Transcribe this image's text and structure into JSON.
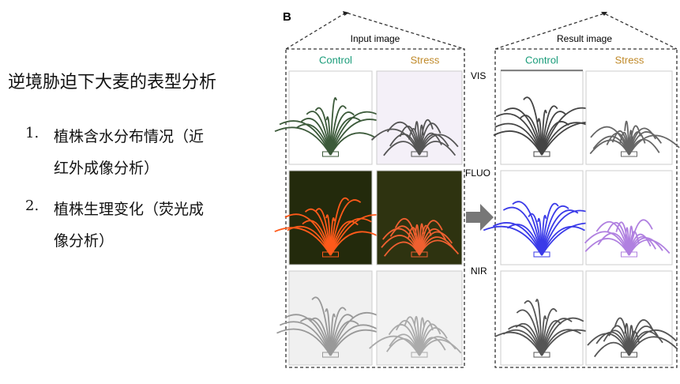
{
  "header": {
    "title": "逆境胁迫下大麦的表型分析"
  },
  "list": [
    {
      "number": "1.",
      "lines": [
        "植株含水分布情况（近",
        "红外成像分析）"
      ]
    },
    {
      "number": "2.",
      "lines": [
        "植株生理变化（荧光成",
        "像分析）"
      ]
    }
  ],
  "figure": {
    "panel_letter": "B",
    "input": {
      "title": "Input image",
      "columns": [
        "Control",
        "Stress"
      ]
    },
    "result": {
      "title": "Result image",
      "columns": [
        "Control",
        "Stress"
      ]
    },
    "rows": [
      "VIS",
      "FLUO",
      "NIR"
    ]
  }
}
